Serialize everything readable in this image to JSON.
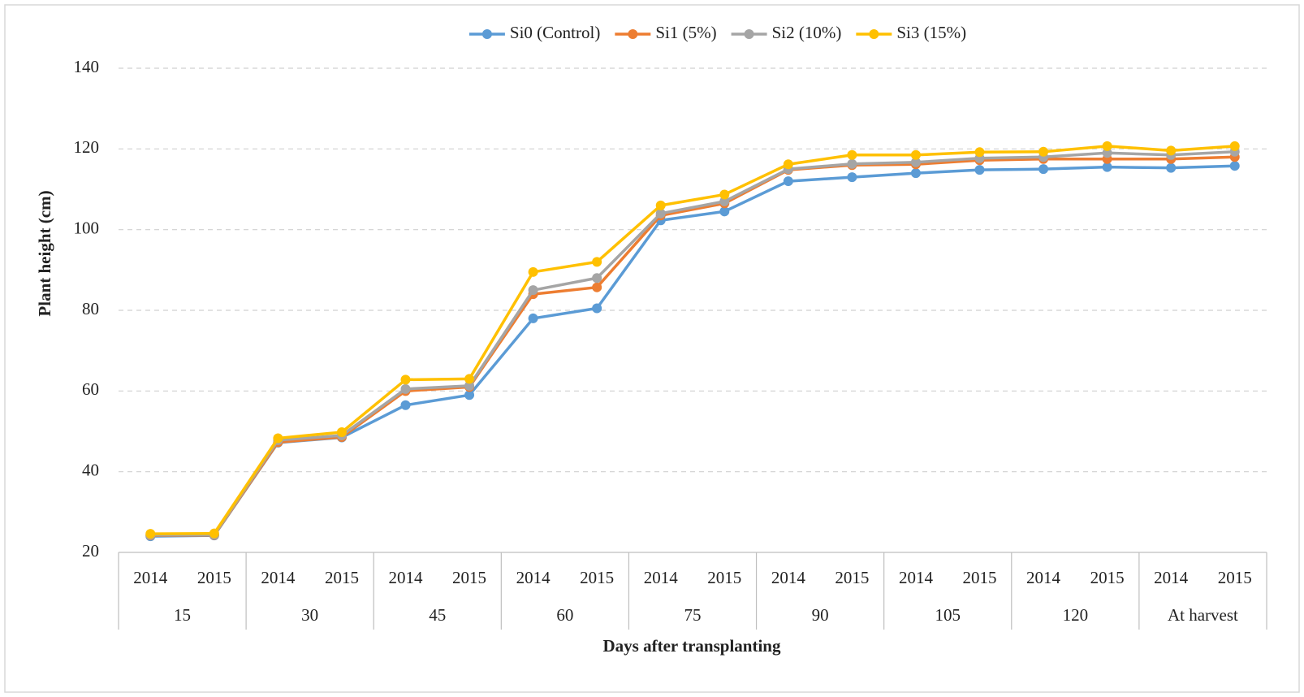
{
  "chart_data": {
    "type": "line",
    "x_label": "Days after transplanting",
    "y_label": "Plant height (cm)",
    "categories": [
      "2014",
      "2015",
      "2014",
      "2015",
      "2014",
      "2015",
      "2014",
      "2015",
      "2014",
      "2015",
      "2014",
      "2015",
      "2014",
      "2015",
      "2014",
      "2015",
      "2014",
      "2015"
    ],
    "groups": [
      "15",
      "30",
      "45",
      "60",
      "75",
      "90",
      "105",
      "120",
      "At harvest"
    ],
    "ylim": [
      20,
      140
    ],
    "yticks": [
      20,
      40,
      60,
      80,
      100,
      120,
      140
    ],
    "grid": true,
    "legend": "top",
    "series": [
      {
        "name": "Si0 (Control)",
        "color": "#5b9bd5",
        "values": [
          24,
          24.2,
          47.2,
          48.5,
          56.5,
          59,
          78,
          80.5,
          102.3,
          104.5,
          112,
          113,
          114,
          114.8,
          115,
          115.5,
          115.3,
          115.8
        ]
      },
      {
        "name": "Si1 (5%)",
        "color": "#ed7d31",
        "values": [
          24.2,
          24.3,
          47.3,
          48.6,
          60,
          61,
          84,
          85.7,
          103.5,
          106.5,
          114.8,
          116,
          116.2,
          117.2,
          117.5,
          117.5,
          117.5,
          118
        ]
      },
      {
        "name": "Si2 (10%)",
        "color": "#a5a5a5",
        "values": [
          24.3,
          24.4,
          47.8,
          49,
          60.5,
          61.3,
          85,
          88,
          104,
          107,
          115,
          116.3,
          116.7,
          117.7,
          118,
          119,
          118.5,
          119.3
        ]
      },
      {
        "name": "Si3 (15%)",
        "color": "#ffc000",
        "values": [
          24.6,
          24.7,
          48.3,
          49.8,
          62.8,
          63,
          89.5,
          92,
          106,
          108.7,
          116.2,
          118.5,
          118.5,
          119.2,
          119.3,
          120.7,
          119.6,
          120.7
        ]
      }
    ]
  }
}
